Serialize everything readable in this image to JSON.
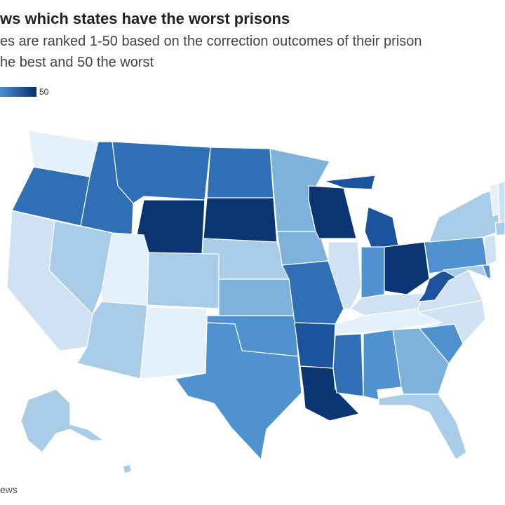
{
  "title": "ws which states have the worst prisons",
  "subtitle_line1": "es are ranked 1-50 based on the correction outcomes of their prison",
  "subtitle_line2": "he best and 50 the worst",
  "legend": {
    "max_label": "50"
  },
  "source": "ews",
  "colors": {
    "c1": "#e4f0fa",
    "c2": "#cfe2f3",
    "c3": "#a9cce8",
    "c4": "#7db2dc",
    "c5": "#4f92cf",
    "c6": "#2f6fb6",
    "c7": "#1b539c",
    "c8": "#0b3572",
    "border": "#ffffff"
  }
}
